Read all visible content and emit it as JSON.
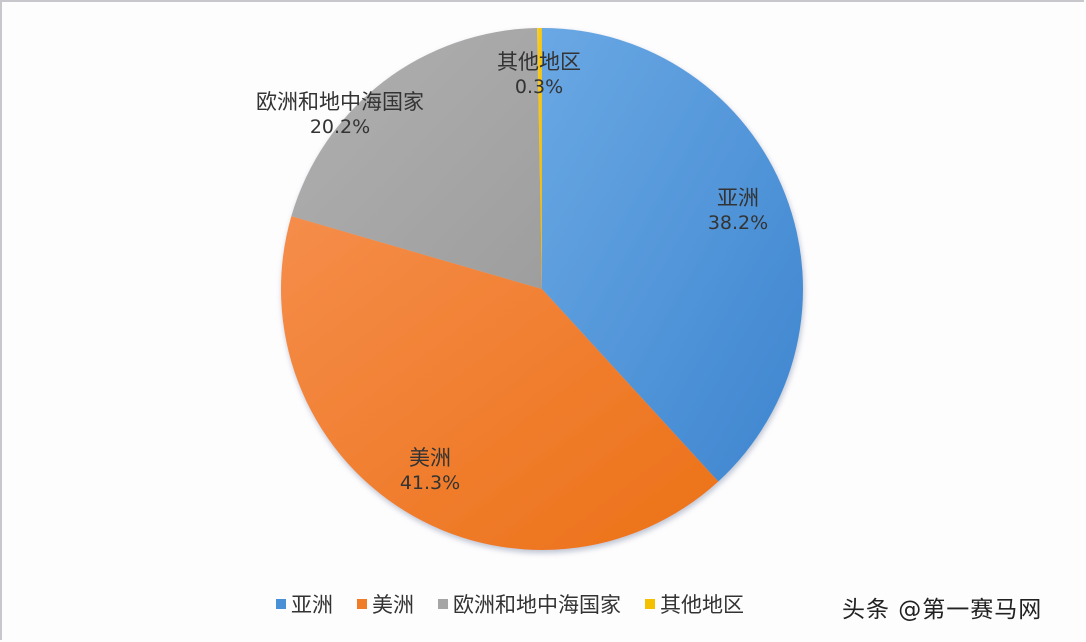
{
  "chart_data": {
    "type": "pie",
    "title": "",
    "categories": [
      "亚洲",
      "美洲",
      "欧洲和地中海国家",
      "其他地区"
    ],
    "values": [
      38.2,
      41.3,
      20.2,
      0.3
    ],
    "value_labels": [
      "38.2%",
      "41.3%",
      "20.2%",
      "0.3%"
    ],
    "colors": [
      "#4a90d6",
      "#f07c27",
      "#a5a5a5",
      "#f5c000"
    ],
    "start_angle": "12 o'clock, clockwise",
    "legend_position": "bottom"
  },
  "labels": [
    {
      "name": "亚洲",
      "pct": "38.2%"
    },
    {
      "name": "美洲",
      "pct": "41.3%"
    },
    {
      "name": "欧洲和地中海国家",
      "pct": "20.2%"
    },
    {
      "name": "其他地区",
      "pct": "0.3%"
    }
  ],
  "legend": [
    "亚洲",
    "美洲",
    "欧洲和地中海国家",
    "其他地区"
  ],
  "watermark": "头条 @第一赛马网"
}
